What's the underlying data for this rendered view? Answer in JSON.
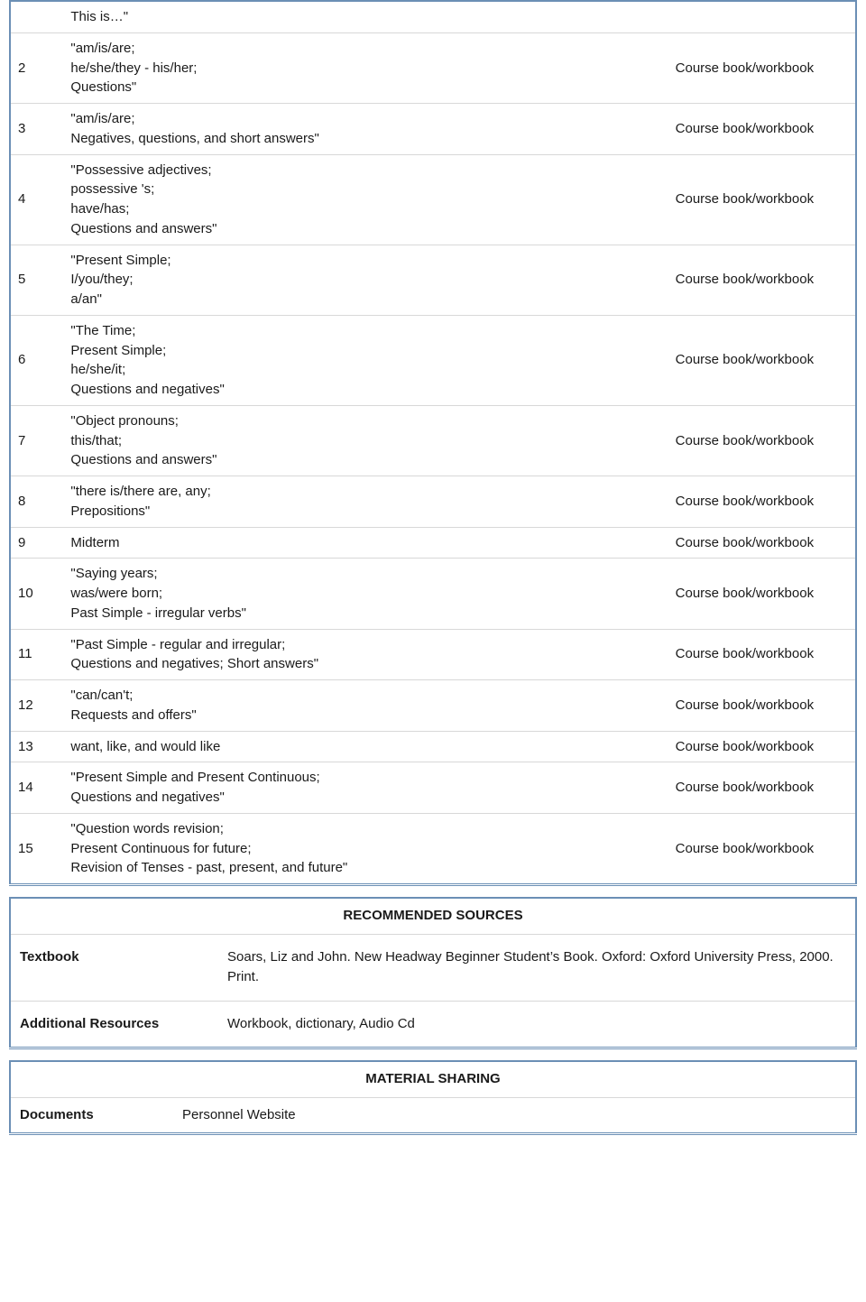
{
  "rows": [
    {
      "num": "",
      "topic": "This is…\"",
      "material": ""
    },
    {
      "num": "2",
      "topic": "\"am/is/are;\nhe/she/they - his/her;\nQuestions\"",
      "material": "Course book/workbook"
    },
    {
      "num": "3",
      "topic": "\"am/is/are;\nNegatives, questions, and short answers\"",
      "material": "Course book/workbook"
    },
    {
      "num": "4",
      "topic": "\"Possessive adjectives;\npossessive 's;\nhave/has;\nQuestions and answers\"",
      "material": "Course book/workbook"
    },
    {
      "num": "5",
      "topic": "\"Present Simple;\nI/you/they;\na/an\"",
      "material": "Course book/workbook"
    },
    {
      "num": "6",
      "topic": "\"The Time;\nPresent Simple;\nhe/she/it;\nQuestions and negatives\"",
      "material": "Course book/workbook"
    },
    {
      "num": "7",
      "topic": "\"Object pronouns;\nthis/that;\nQuestions and answers\"",
      "material": "Course book/workbook"
    },
    {
      "num": "8",
      "topic": "\"there is/there are, any;\nPrepositions\"",
      "material": "Course book/workbook"
    },
    {
      "num": "9",
      "topic": "Midterm",
      "material": "Course book/workbook"
    },
    {
      "num": "10",
      "topic": "\"Saying years;\nwas/were born;\nPast Simple - irregular verbs\"",
      "material": "Course book/workbook"
    },
    {
      "num": "11",
      "topic": "\"Past Simple - regular and irregular;\nQuestions and negatives; Short answers\"",
      "material": "Course book/workbook"
    },
    {
      "num": "12",
      "topic": "\"can/can't;\nRequests and offers\"",
      "material": "Course book/workbook"
    },
    {
      "num": "13",
      "topic": "want, like, and would like",
      "material": "Course book/workbook"
    },
    {
      "num": "14",
      "topic": "\"Present Simple and Present Continuous;\nQuestions and negatives\"",
      "material": "Course book/workbook"
    },
    {
      "num": "15",
      "topic": "\"Question words revision;\nPresent Continuous for future;\nRevision of Tenses - past, present, and future\"",
      "material": "Course book/workbook"
    }
  ],
  "sources": {
    "title": "RECOMMENDED SOURCES",
    "textbook_label": "Textbook",
    "textbook_value": "Soars, Liz and John. New Headway Beginner Student’s Book. Oxford: Oxford University Press, 2000. Print.",
    "resources_label": "Additional Resources",
    "resources_value": "Workbook, dictionary, Audio Cd"
  },
  "material_sharing": {
    "title": "MATERIAL SHARING",
    "documents_label": "Documents",
    "documents_value": "Personnel Website"
  }
}
